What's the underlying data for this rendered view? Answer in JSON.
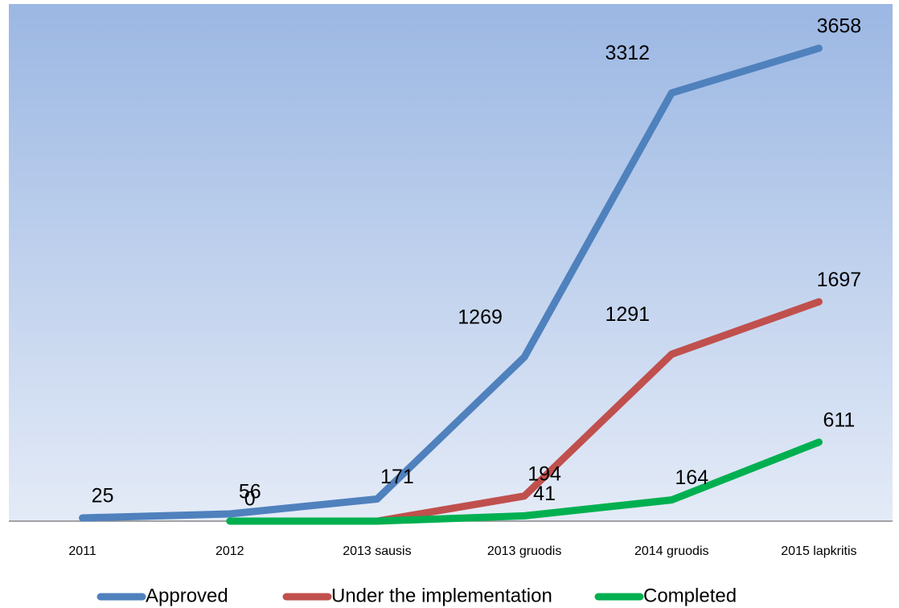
{
  "chart_data": {
    "type": "line",
    "categories": [
      "2011",
      "2012",
      "2013 sausis",
      "2013 gruodis",
      "2014 gruodis",
      "2015 lapkritis"
    ],
    "series": [
      {
        "name": "Approved",
        "color": "#4f81bd",
        "values": [
          25,
          56,
          171,
          1269,
          3312,
          3658
        ],
        "value_labels": [
          "25",
          "56",
          "171",
          "1269",
          "3312",
          "3658"
        ]
      },
      {
        "name": "Under the implementation",
        "color": "#c0504d",
        "values": [
          null,
          null,
          0,
          194,
          1291,
          1697
        ],
        "value_labels": [
          null,
          null,
          null,
          "194",
          "1291",
          "1697"
        ]
      },
      {
        "name": "Completed",
        "color": "#00b050",
        "values": [
          null,
          0,
          0,
          41,
          164,
          611
        ],
        "value_labels": [
          null,
          "0",
          null,
          "41",
          "164",
          "611"
        ]
      }
    ],
    "ylim": [
      0,
      4000
    ],
    "legend": "bottom"
  }
}
